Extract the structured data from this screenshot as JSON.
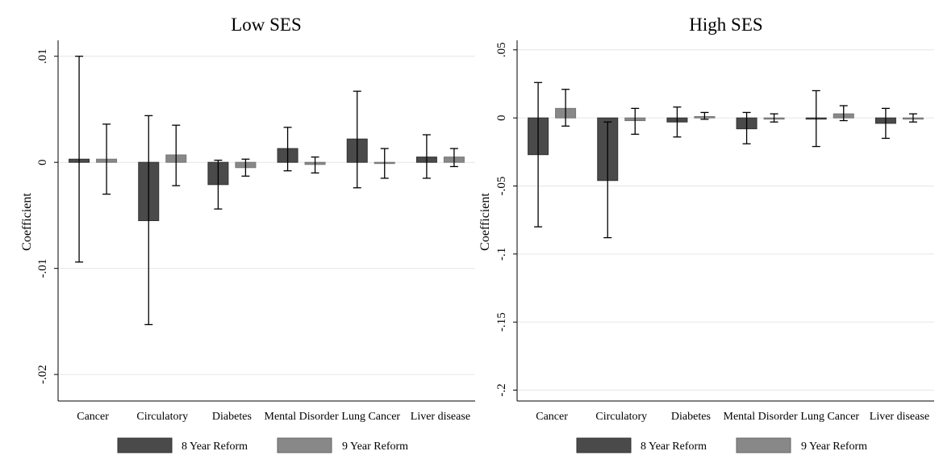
{
  "chart_data": [
    {
      "type": "bar",
      "title": "Low SES",
      "ylabel": "Coefficient",
      "xlabel": "",
      "categories": [
        "Cancer",
        "Circulatory",
        "Diabetes",
        "Mental Disorder",
        "Lung Cancer",
        "Liver disease"
      ],
      "ylim": [
        -0.0225,
        0.0115
      ],
      "yticks": [
        -0.02,
        -0.01,
        0,
        0.01
      ],
      "ytick_labels": [
        "-.02",
        "-.01",
        "0",
        ".01"
      ],
      "grid": true,
      "legend_position": "bottom",
      "series": [
        {
          "name": "8 Year Reform",
          "color": "#4a4a4a",
          "values": [
            0.0003,
            -0.0055,
            -0.0021,
            0.0013,
            0.0022,
            0.0005
          ],
          "ci_low": [
            -0.0094,
            -0.0153,
            -0.0044,
            -0.0008,
            -0.0024,
            -0.0015
          ],
          "ci_high": [
            0.01,
            0.0044,
            0.0002,
            0.0033,
            0.0067,
            0.0026
          ]
        },
        {
          "name": "9 Year Reform",
          "color": "#888888",
          "values": [
            0.0003,
            0.0007,
            -0.0005,
            -0.0002,
            0.0,
            0.0005
          ],
          "ci_low": [
            -0.003,
            -0.0022,
            -0.0013,
            -0.001,
            -0.0015,
            -0.0004
          ],
          "ci_high": [
            0.0036,
            0.0035,
            0.0003,
            0.0005,
            0.0013,
            0.0013
          ]
        }
      ]
    },
    {
      "type": "bar",
      "title": "High SES",
      "ylabel": "Coefficient",
      "xlabel": "",
      "categories": [
        "Cancer",
        "Circulatory",
        "Diabetes",
        "Mental Disorder",
        "Lung Cancer",
        "Liver disease"
      ],
      "ylim": [
        -0.208,
        0.057
      ],
      "yticks": [
        -0.2,
        -0.15,
        -0.1,
        -0.05,
        0,
        0.05
      ],
      "ytick_labels": [
        "-.2",
        "-.15",
        "-.1",
        "-.05",
        "0",
        ".05"
      ],
      "grid": true,
      "legend_position": "bottom",
      "series": [
        {
          "name": "8 Year Reform",
          "color": "#4a4a4a",
          "values": [
            -0.027,
            -0.046,
            -0.003,
            -0.008,
            0.0,
            -0.004
          ],
          "ci_low": [
            -0.08,
            -0.088,
            -0.014,
            -0.019,
            -0.021,
            -0.015
          ],
          "ci_high": [
            0.026,
            -0.003,
            0.008,
            0.004,
            0.02,
            0.007
          ]
        },
        {
          "name": "9 Year Reform",
          "color": "#888888",
          "values": [
            0.007,
            -0.002,
            0.001,
            0.0,
            0.003,
            0.0
          ],
          "ci_low": [
            -0.006,
            -0.012,
            -0.001,
            -0.003,
            -0.002,
            -0.003
          ],
          "ci_high": [
            0.021,
            0.007,
            0.004,
            0.003,
            0.009,
            0.003
          ]
        }
      ]
    }
  ]
}
